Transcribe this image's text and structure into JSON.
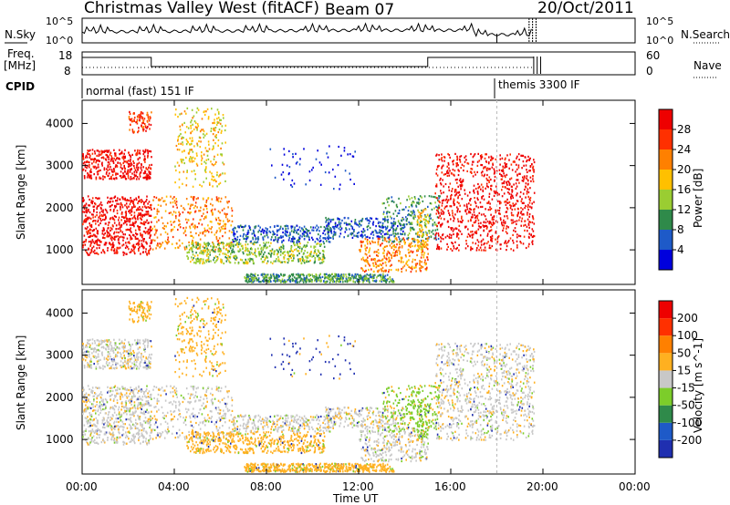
{
  "header": {
    "station": "Christmas Valley West (fitACF)",
    "beam": "Beam 07",
    "date": "20/Oct/2011"
  },
  "strip_labels": {
    "nsky": "N.Sky",
    "freq": "Freq.",
    "freq_unit": "[MHz]",
    "cpid": "CPID",
    "nsearch": "N.Search",
    "nave": "Nave"
  },
  "noise_axis": {
    "top": "10^5",
    "bottom": "10^0",
    "right_top": "10^5",
    "right_bottom": "10^0"
  },
  "freq_axis": {
    "ticks": [
      "18",
      "8"
    ],
    "right_ticks": [
      "60",
      "0"
    ]
  },
  "cpid_modes": [
    {
      "label": "normal (fast) 151 IF",
      "start_h": 0.0
    },
    {
      "label": "themis 3300 IF",
      "start_h": 18.0
    }
  ],
  "chart_data": [
    {
      "type": "heatmap",
      "name": "power",
      "ylabel": "Slant Range [km]",
      "xlabel": "Time UT",
      "ylim": [
        180,
        4550
      ],
      "xlim": [
        0,
        24
      ],
      "x_ticks": [
        "00:00",
        "04:00",
        "08:00",
        "12:00",
        "16:00",
        "20:00",
        "00:00"
      ],
      "y_ticks": [
        "1000",
        "2000",
        "3000",
        "4000"
      ],
      "colorbar": {
        "label": "Power [dB]",
        "ticks": [
          "4",
          "8",
          "12",
          "16",
          "20",
          "24",
          "28"
        ],
        "colors": [
          "#0000dd",
          "#1e5ac8",
          "#2f8a4a",
          "#9acd32",
          "#ffc000",
          "#ff8000",
          "#ff3000",
          "#ee0000"
        ]
      }
    },
    {
      "type": "heatmap",
      "name": "velocity",
      "ylabel": "Slant Range [km]",
      "xlabel": "Time UT",
      "ylim": [
        180,
        4550
      ],
      "xlim": [
        0,
        24
      ],
      "x_ticks": [
        "00:00",
        "04:00",
        "08:00",
        "12:00",
        "16:00",
        "20:00",
        "00:00"
      ],
      "y_ticks": [
        "1000",
        "2000",
        "3000",
        "4000"
      ],
      "colorbar": {
        "label": "Velocity [m s^-1]",
        "ticks": [
          "200",
          "100",
          "50",
          "15",
          "-15",
          "-50",
          "-100",
          "-200"
        ],
        "colors": [
          "#1f2fb0",
          "#1e5ac8",
          "#2f8a4a",
          "#7ccd2a",
          "#c8c8c8",
          "#ffb020",
          "#ff8000",
          "#ff3000",
          "#ee0000"
        ]
      }
    }
  ],
  "time_axis": {
    "label": "Time UT",
    "ticks": [
      "00:00",
      "04:00",
      "08:00",
      "12:00",
      "16:00",
      "20:00",
      "00:00"
    ]
  }
}
